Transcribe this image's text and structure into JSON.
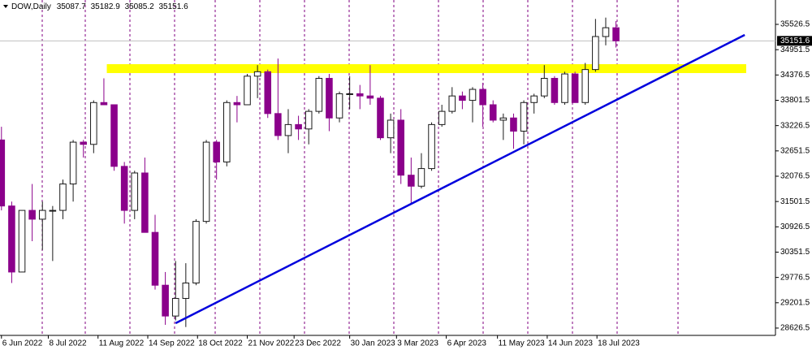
{
  "chart_data": {
    "type": "candlestick",
    "header": {
      "symbol": "DOW,Daily",
      "open": 35087.7,
      "high": 35182.9,
      "low": 35085.2,
      "close": 35151.6
    },
    "x": [
      "6 Jun 2022",
      "13 Jun 2022",
      "20 Jun 2022",
      "27 Jun 2022",
      "4 Jul 2022",
      "11 Jul 2022",
      "18 Jul 2022",
      "25 Jul 2022",
      "1 Aug 2022",
      "8 Aug 2022",
      "15 Aug 2022",
      "22 Aug 2022",
      "29 Aug 2022",
      "5 Sep 2022",
      "12 Sep 2022",
      "19 Sep 2022",
      "26 Sep 2022",
      "3 Oct 2022",
      "10 Oct 2022",
      "17 Oct 2022",
      "24 Oct 2022",
      "31 Oct 2022",
      "7 Nov 2022",
      "14 Nov 2022",
      "21 Nov 2022",
      "28 Nov 2022",
      "5 Dec 2022",
      "12 Dec 2022",
      "19 Dec 2022",
      "26 Dec 2022",
      "2 Jan 2023",
      "9 Jan 2023",
      "16 Jan 2023",
      "23 Jan 2023",
      "30 Jan 2023",
      "6 Feb 2023",
      "13 Feb 2023",
      "20 Feb 2023",
      "27 Feb 2023",
      "6 Mar 2023",
      "13 Mar 2023",
      "20 Mar 2023",
      "27 Mar 2023",
      "3 Apr 2023",
      "10 Apr 2023",
      "17 Apr 2023",
      "24 Apr 2023",
      "1 May 2023",
      "8 May 2023",
      "15 May 2023",
      "22 May 2023",
      "29 May 2023",
      "5 Jun 2023",
      "12 Jun 2023",
      "19 Jun 2023",
      "26 Jun 2023",
      "3 Jul 2023",
      "10 Jul 2023",
      "17 Jul 2023",
      "24 Jul 2023",
      "31 Jul 2023"
    ],
    "open": [
      32900,
      31400,
      29900,
      31300,
      31100,
      31300,
      31300,
      31900,
      32850,
      32800,
      33750,
      33700,
      32300,
      31300,
      32150,
      30800,
      29600,
      28900,
      29300,
      29650,
      31050,
      32850,
      32400,
      33750,
      33700,
      34350,
      34450,
      33500,
      33000,
      33250,
      33150,
      33550,
      34300,
      33400,
      33950,
      33950,
      33900,
      33850,
      32950,
      33350,
      32100,
      31850,
      32250,
      33250,
      33550,
      33900,
      33800,
      34050,
      33700,
      33350,
      33400,
      33100,
      33750,
      33900,
      34300,
      33750,
      34400,
      33750,
      34500,
      35250,
      35450
    ],
    "high": [
      33200,
      31500,
      31300,
      31900,
      31500,
      31400,
      32000,
      32900,
      32900,
      33800,
      34300,
      33700,
      32400,
      32200,
      32500,
      31200,
      29900,
      30150,
      30100,
      31100,
      32900,
      32900,
      33800,
      33900,
      34400,
      34600,
      34500,
      34750,
      33600,
      33450,
      33600,
      34350,
      34400,
      34000,
      34350,
      34150,
      34600,
      33900,
      33500,
      33600,
      32500,
      32600,
      33300,
      33700,
      34100,
      34000,
      34100,
      34200,
      33800,
      33500,
      33500,
      33800,
      33950,
      34600,
      34350,
      34450,
      34450,
      34650,
      35650,
      35680,
      35600
    ],
    "low": [
      31300,
      29650,
      29900,
      30600,
      30400,
      30150,
      31100,
      31500,
      32500,
      32600,
      33700,
      32200,
      31000,
      31100,
      30800,
      29500,
      28700,
      28800,
      28650,
      29600,
      31000,
      32000,
      32300,
      33300,
      33700,
      33850,
      33400,
      32900,
      32600,
      32900,
      32800,
      33500,
      33100,
      33300,
      33600,
      33600,
      33700,
      32900,
      32600,
      31900,
      31450,
      31800,
      32200,
      33200,
      33500,
      33600,
      33300,
      33200,
      33300,
      32900,
      32700,
      32800,
      33500,
      33850,
      33700,
      33700,
      33750,
      33700,
      34450,
      35050,
      35000
    ],
    "close": [
      31400,
      29900,
      31300,
      31100,
      31300,
      31300,
      31900,
      32850,
      32800,
      33750,
      33700,
      32300,
      31300,
      32150,
      30800,
      29600,
      28900,
      29300,
      29650,
      31050,
      32850,
      32400,
      33750,
      33700,
      34350,
      34450,
      33500,
      33000,
      33250,
      33150,
      33550,
      34300,
      33400,
      33950,
      33950,
      33900,
      33850,
      32950,
      33350,
      32100,
      31850,
      32250,
      33250,
      33550,
      33900,
      33800,
      34050,
      33700,
      33350,
      33400,
      33100,
      33750,
      33900,
      34300,
      33750,
      34400,
      33750,
      34500,
      35250,
      35450,
      35151.6
    ],
    "up_color": "#1a1a1a",
    "down_color": "#8b008b",
    "xlim": [
      "5 Jun 2022",
      "17 Nov 2023"
    ],
    "xticks": [
      "6 Jun 2022",
      "8 Jul 2022",
      "11 Aug 2022",
      "14 Sep 2022",
      "18 Oct 2022",
      "21 Nov 2022",
      "23 Dec 2022",
      "30 Jan 2023",
      "3 Mar 2023",
      "6 Apr 2023",
      "11 May 2023",
      "14 Jun 2023",
      "18 Jul 2023"
    ],
    "ylim": [
      28460,
      36080
    ],
    "yticks": [
      28626.5,
      29201.5,
      29776.5,
      30351.5,
      30926.5,
      31501.5,
      32076.5,
      32651.5,
      33226.5,
      33801.5,
      34376.5,
      34951.5,
      35526.5
    ],
    "last_price": 35151.6,
    "zone": {
      "x": [
        "17 Aug 2022",
        "28 Oct 2023"
      ],
      "y": [
        34420,
        34622
      ],
      "color": "#ffff00"
    },
    "trendline": {
      "x": [
        "3 Oct 2022",
        "27 Oct 2023"
      ],
      "y": [
        28737,
        35287
      ],
      "color": "#0000dd"
    }
  }
}
